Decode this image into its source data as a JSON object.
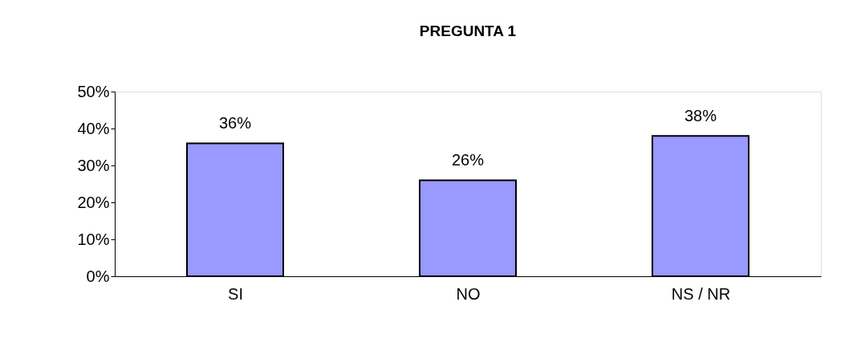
{
  "chart_data": {
    "type": "bar",
    "title": "PREGUNTA 1",
    "categories": [
      "SI",
      "NO",
      "NS / NR"
    ],
    "values": [
      36,
      26,
      38
    ],
    "value_labels": [
      "36%",
      "26%",
      "38%"
    ],
    "color": "#9999ff",
    "ylim": [
      0,
      50
    ],
    "yticks": [
      {
        "value": 0,
        "label": "0%"
      },
      {
        "value": 10,
        "label": "10%"
      },
      {
        "value": 20,
        "label": "20%"
      },
      {
        "value": 30,
        "label": "30%"
      },
      {
        "value": 40,
        "label": "40%"
      },
      {
        "value": 50,
        "label": "50%"
      }
    ],
    "grid": false
  }
}
